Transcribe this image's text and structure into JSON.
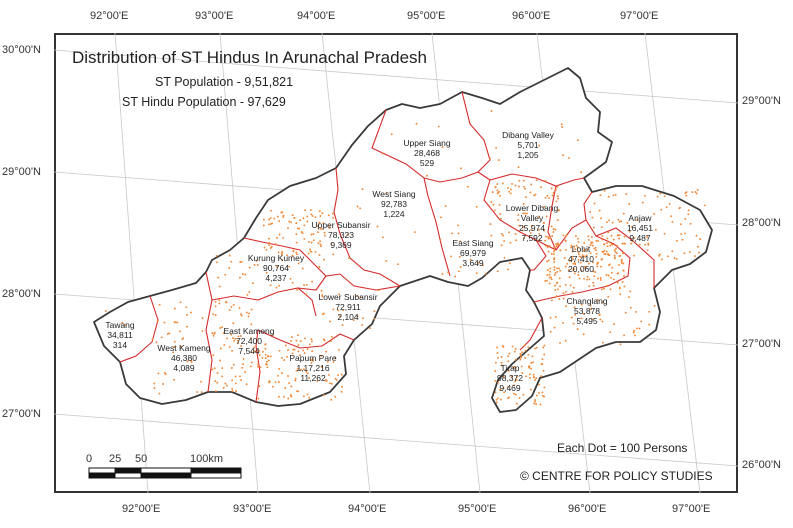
{
  "map": {
    "title": "Distribution of ST Hindus In Arunachal Pradesh",
    "st_population": "ST Population - 9,51,821",
    "st_hindu_population": "ST Hindu Population - 97,629",
    "dot_legend": "Each Dot = 100 Persons",
    "credit": "© CENTRE FOR POLICY STUDIES",
    "scale": {
      "labels": [
        "0",
        "25",
        "50",
        "100km"
      ]
    },
    "colors": {
      "boundary": "#3a3a3a",
      "district_line": "#d62b2b",
      "dot": "#f08a3a",
      "graticule": "#c8c8c8"
    }
  },
  "graticule": {
    "top": [
      "92°00'E",
      "93°00'E",
      "94°00'E",
      "95°00'E",
      "96°00'E",
      "97°00'E"
    ],
    "bottom": [
      "92°00'E",
      "93°00'E",
      "94°00'E",
      "95°00'E",
      "96°00'E",
      "97°00'E"
    ],
    "left": [
      "30°00'N",
      "29°00'N",
      "28°00'N",
      "27°00'N"
    ],
    "right": [
      "29°00'N",
      "28°00'N",
      "27°00'N",
      "26°00'N"
    ]
  },
  "districts": [
    {
      "name": "Tawang",
      "total": "34,811",
      "hindu": "314"
    },
    {
      "name": "West Kameng",
      "total": "46,380",
      "hindu": "4,089"
    },
    {
      "name": "East Kameng",
      "total": "72,400",
      "hindu": "7,544"
    },
    {
      "name": "Papum Pare",
      "total": "1,17,216",
      "hindu": "11,262"
    },
    {
      "name": "Kurung Kumey",
      "total": "90,764",
      "hindu": "4,237"
    },
    {
      "name": "Lower Subansir",
      "total": "72,911",
      "hindu": "2,104"
    },
    {
      "name": "Upper Subansir",
      "total": "78,323",
      "hindu": "9,369"
    },
    {
      "name": "West Siang",
      "total": "92,783",
      "hindu": "1,224"
    },
    {
      "name": "Upper Siang",
      "total": "28,468",
      "hindu": "529"
    },
    {
      "name": "East Siang",
      "total": "69,979",
      "hindu": "3,649"
    },
    {
      "name": "Dibang Valley",
      "total": "5,701",
      "hindu": "1,205"
    },
    {
      "name": "Lower Dibang Valley",
      "total": "25,974",
      "hindu": "7,592"
    },
    {
      "name": "Lohit",
      "total": "47,410",
      "hindu": "20,060"
    },
    {
      "name": "Anjaw",
      "total": "16,451",
      "hindu": "9,487"
    },
    {
      "name": "Changlang",
      "total": "53,878",
      "hindu": "5,495"
    },
    {
      "name": "Tirap",
      "total": "98,372",
      "hindu": "9,469"
    }
  ]
}
